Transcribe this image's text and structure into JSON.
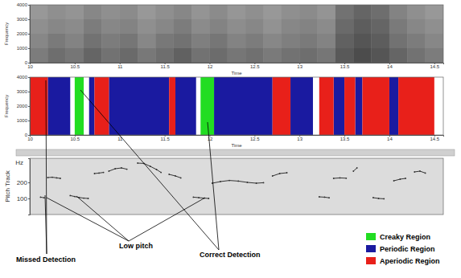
{
  "chart_data": [
    {
      "type": "heatmap",
      "x_label": "Time",
      "y_label": "Frequency",
      "xlim": [
        10,
        14.6
      ],
      "xticks": [
        10,
        10.5,
        11,
        11.5,
        12,
        12.5,
        13,
        13.5,
        14,
        14.5
      ],
      "ylim": [
        0,
        4000
      ],
      "yticks": [
        0,
        1000,
        2000,
        3000,
        4000
      ],
      "x_edges": [
        10,
        10.2,
        10.4,
        10.6,
        10.8,
        11,
        11.2,
        11.4,
        11.6,
        11.8,
        12,
        12.2,
        12.4,
        12.6,
        12.8,
        13,
        13.2,
        13.4,
        13.6,
        13.8,
        14,
        14.2,
        14.4,
        14.6
      ],
      "y_edges": [
        0,
        1000,
        2000,
        3000,
        4000
      ],
      "zlim": [
        0,
        1
      ],
      "cells": [
        [
          0.55,
          0.62,
          0.58,
          0.66,
          0.6,
          0.64,
          0.57,
          0.62,
          0.68,
          0.6,
          0.63,
          0.58,
          0.61,
          0.56,
          0.6,
          0.62,
          0.58,
          0.72,
          0.78,
          0.74,
          0.66,
          0.6,
          0.55
        ],
        [
          0.5,
          0.56,
          0.52,
          0.6,
          0.55,
          0.58,
          0.5,
          0.57,
          0.6,
          0.54,
          0.58,
          0.52,
          0.55,
          0.5,
          0.54,
          0.56,
          0.52,
          0.68,
          0.74,
          0.7,
          0.6,
          0.55,
          0.5
        ],
        [
          0.46,
          0.5,
          0.48,
          0.55,
          0.5,
          0.52,
          0.46,
          0.5,
          0.55,
          0.48,
          0.52,
          0.47,
          0.5,
          0.45,
          0.5,
          0.52,
          0.48,
          0.64,
          0.7,
          0.66,
          0.56,
          0.5,
          0.46
        ],
        [
          0.42,
          0.46,
          0.44,
          0.5,
          0.46,
          0.48,
          0.42,
          0.46,
          0.5,
          0.44,
          0.48,
          0.43,
          0.46,
          0.42,
          0.46,
          0.48,
          0.44,
          0.6,
          0.66,
          0.62,
          0.52,
          0.46,
          0.42
        ]
      ]
    },
    {
      "type": "timeline",
      "x_label": "Time",
      "y_label": "Frequency",
      "legend": "bottom-right",
      "xlim": [
        10,
        14.6
      ],
      "xticks": [
        10,
        10.5,
        11,
        11.5,
        12,
        12.5,
        13,
        13.5,
        14,
        14.5
      ],
      "ylim": [
        0,
        4000
      ],
      "yticks": [
        0,
        1000,
        2000,
        3000,
        4000
      ],
      "series": [
        {
          "name": "Creaky Region",
          "color": "#22dd22",
          "intervals": [
            [
              10.5,
              10.6
            ],
            [
              11.9,
              12.05
            ]
          ]
        },
        {
          "name": "Periodic Region",
          "color": "#1a1aa0",
          "intervals": [
            [
              10.2,
              10.45
            ],
            [
              10.66,
              10.72
            ],
            [
              10.88,
              11.55
            ],
            [
              11.62,
              11.85
            ],
            [
              12.05,
              12.7
            ],
            [
              12.9,
              13.15
            ],
            [
              13.38,
              13.5
            ],
            [
              13.62,
              13.7
            ],
            [
              14.0,
              14.1
            ]
          ]
        },
        {
          "name": "Aperiodic Region",
          "color": "#e8201a",
          "intervals": [
            [
              10.0,
              10.2
            ],
            [
              10.72,
              10.88
            ],
            [
              11.55,
              11.62
            ],
            [
              12.7,
              12.9
            ],
            [
              13.22,
              13.38
            ],
            [
              13.5,
              13.62
            ],
            [
              13.7,
              14.0
            ],
            [
              14.1,
              14.5
            ]
          ]
        }
      ]
    },
    {
      "type": "line",
      "title": "Pitch Track",
      "y_label": "Hz",
      "tick_labels": "y",
      "marker": "dot",
      "xlim": [
        10,
        14.6
      ],
      "ylim": [
        0,
        350
      ],
      "yticks": [
        100,
        200
      ],
      "x": [
        10.12,
        10.16,
        10.18,
        10.2,
        10.25,
        10.3,
        10.34,
        10.37,
        10.45,
        10.5,
        10.55,
        10.6,
        10.65,
        10.68,
        10.72,
        10.77,
        10.82,
        10.85,
        10.88,
        10.95,
        11.02,
        11.08,
        11.13,
        11.2,
        11.27,
        11.34,
        11.41,
        11.46,
        11.5,
        11.55,
        11.62,
        11.68,
        11.72,
        11.82,
        11.88,
        11.94,
        11.99,
        12.01,
        12.03,
        12.12,
        12.22,
        12.32,
        12.42,
        12.52,
        12.6,
        12.64,
        12.7,
        12.78,
        12.86,
        12.9,
        13.22,
        13.28,
        13.33,
        13.36,
        13.38,
        13.45,
        13.52,
        13.56,
        13.6,
        13.64,
        13.68,
        13.82,
        13.88,
        13.94,
        13.98,
        14.05,
        14.12,
        14.18,
        14.22,
        14.28,
        14.34,
        14.4
      ],
      "series": [
        {
          "color": "#333333",
          "values": [
            108,
            104,
            null,
            230,
            232,
            228,
            225,
            null,
            118,
            112,
            106,
            102,
            100,
            null,
            255,
            258,
            262,
            null,
            270,
            285,
            290,
            282,
            null,
            320,
            318,
            300,
            280,
            262,
            null,
            250,
            240,
            228,
            null,
            108,
            105,
            102,
            100,
            null,
            195,
            205,
            212,
            208,
            200,
            195,
            198,
            null,
            240,
            255,
            260,
            null,
            110,
            108,
            104,
            null,
            225,
            228,
            226,
            null,
            270,
            290,
            null,
            105,
            100,
            98,
            null,
            210,
            220,
            225,
            null,
            265,
            270,
            258
          ]
        }
      ],
      "annotations": [
        "Missed Detection",
        "Low pitch",
        "Correct Detection"
      ]
    }
  ]
}
